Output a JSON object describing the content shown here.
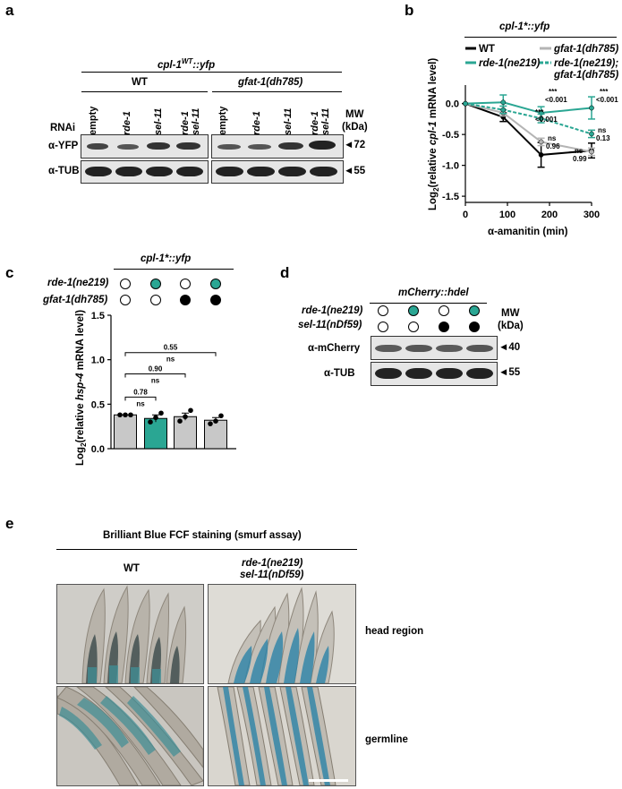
{
  "panels": {
    "a": "a",
    "b": "b",
    "c": "c",
    "d": "d",
    "e": "e"
  },
  "a": {
    "title": "cpl-1",
    "title_sup": "WT",
    "title_suffix": "::yfp",
    "group_wt": "WT",
    "group_gfat": "gfat-1(dh785)",
    "rnai_label": "RNAi",
    "lanes": [
      "empty",
      "rde-1",
      "sel-11",
      "rde-1",
      "empty",
      "rde-1",
      "sel-11",
      "rde-1"
    ],
    "lanes_second": [
      "",
      "",
      "",
      "sel-11",
      "",
      "",
      "",
      "sel-11"
    ],
    "mw_label": "MW",
    "mw_unit": "(kDa)",
    "row1_label": "α-YFP",
    "row2_label": "α-TUB",
    "mw1": "◄72",
    "mw2": "◄55",
    "band_color": "#2e2e2e"
  },
  "b": {
    "title": "cpl-1*::yfp",
    "legend": [
      "WT",
      "gfat-1(dh785)",
      "rde-1(ne219)",
      "rde-1(ne219);",
      "gfat-1(dh785)"
    ],
    "ylabel_pre": "Log",
    "ylabel_sub": "2",
    "ylabel_a": "(relative ",
    "ylabel_gene": "cpl-1",
    "ylabel_b": " mRNA level)",
    "xlabel": "α-amanitin (min)",
    "xticks": [
      "0",
      "100",
      "200",
      "300"
    ],
    "yticks": [
      "0.0",
      "-0.5",
      "-1.0",
      "-1.5"
    ],
    "annotations": [
      "***",
      "<0.001",
      "***",
      "<0.001",
      "***",
      "<0.001",
      "ns",
      "0.13",
      "ns",
      "0.96",
      "ns",
      "0.99"
    ],
    "colors": {
      "wt": "#000000",
      "gfat": "#b4b4b4",
      "rde": "#2aa693",
      "rde_gfat": "#2aa693"
    }
  },
  "chart_data": [
    {
      "type": "line",
      "title": "cpl-1*::yfp",
      "xlabel": "α-amanitin (min)",
      "ylabel": "Log2(relative cpl-1 mRNA level)",
      "xlim": [
        0,
        300
      ],
      "ylim": [
        -1.6,
        0.3
      ],
      "series": [
        {
          "name": "WT",
          "x": [
            0,
            90,
            180,
            300
          ],
          "y": [
            0,
            -0.22,
            -0.83,
            -0.76
          ],
          "err": [
            0,
            0.07,
            0.2,
            0.12
          ]
        },
        {
          "name": "gfat-1(dh785)",
          "x": [
            0,
            90,
            180,
            300
          ],
          "y": [
            0,
            -0.15,
            -0.62,
            -0.78
          ],
          "err": [
            0,
            0.05,
            0.06,
            0.06
          ]
        },
        {
          "name": "rde-1(ne219)",
          "x": [
            0,
            90,
            180,
            300
          ],
          "y": [
            0,
            0.02,
            -0.15,
            -0.07
          ],
          "err": [
            0,
            0.12,
            0.1,
            0.18
          ]
        },
        {
          "name": "rde-1(ne219); gfat-1(dh785)",
          "x": [
            0,
            90,
            180,
            300
          ],
          "y": [
            0,
            -0.1,
            -0.24,
            -0.49
          ],
          "err": [
            0,
            0.06,
            0.07,
            0.06
          ]
        }
      ]
    },
    {
      "type": "bar",
      "title": "cpl-1*::yfp",
      "ylabel": "Log2(relative hsp-4 mRNA level)",
      "categories": [
        "1",
        "2",
        "3",
        "4"
      ],
      "values": [
        0.38,
        0.34,
        0.36,
        0.32
      ],
      "err": [
        0.0,
        0.04,
        0.04,
        0.03
      ],
      "points": [
        [
          0.38,
          0.38,
          0.38
        ],
        [
          0.3,
          0.35,
          0.4
        ],
        [
          0.31,
          0.36,
          0.43
        ],
        [
          0.28,
          0.31,
          0.37
        ]
      ],
      "ylim": [
        0,
        1.5
      ],
      "comparisons": [
        {
          "a": 1,
          "b": 4,
          "p": "0.55"
        },
        {
          "a": 1,
          "b": 3,
          "p": "0.90"
        },
        {
          "a": 1,
          "b": 2,
          "p": "0.78"
        }
      ]
    }
  ],
  "c": {
    "title": "cpl-1*::yfp",
    "row1": "rde-1(ne219)",
    "row2": "gfat-1(dh785)",
    "row1_fill": [
      "none",
      "#2aa693",
      "none",
      "#2aa693"
    ],
    "row2_fill": [
      "none",
      "none",
      "#000000",
      "#000000"
    ],
    "ylabel_pre": "Log",
    "ylabel_sub": "2",
    "ylabel_a": "(relative ",
    "ylabel_gene": "hsp-4",
    "ylabel_b": " mRNA level)",
    "yticks": [
      "0.0",
      "0.5",
      "1.0",
      "1.5"
    ],
    "ns": "ns",
    "bar_colors": [
      "#c8c8c8",
      "#2aa693",
      "#c8c8c8",
      "#c8c8c8"
    ]
  },
  "d": {
    "title": "mCherry::hdel",
    "row1": "rde-1(ne219)",
    "row2": "sel-11(nDf59)",
    "row1_fill": [
      "none",
      "#2aa693",
      "none",
      "#2aa693"
    ],
    "row2_fill": [
      "none",
      "none",
      "#000000",
      "#000000"
    ],
    "mw_label": "MW",
    "mw_unit": "(kDa)",
    "blot1": "α-mCherry",
    "blot2": "α-TUB",
    "mw1": "◄40",
    "mw2": "◄55"
  },
  "e": {
    "title": "Brilliant Blue FCF staining (smurf assay)",
    "col1": "WT",
    "col2a": "rde-1(ne219)",
    "col2b": "sel-11(nDf59)",
    "row1": "head region",
    "row2": "germline"
  }
}
